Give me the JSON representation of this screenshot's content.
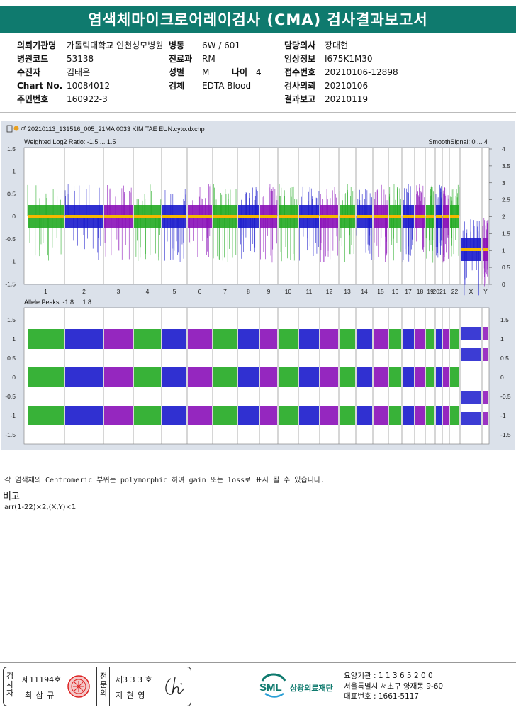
{
  "title": "염색체마이크로어레이검사 (CMA) 검사결과보고서",
  "info_left": [
    {
      "label": "의뢰기관명",
      "value": "가톨릭대학교 인천성모병원"
    },
    {
      "label": "병원코드",
      "value": "53138"
    },
    {
      "label": "수진자",
      "value": "김태은"
    },
    {
      "label": "Chart No.",
      "value": "10084012"
    },
    {
      "label": "주민번호",
      "value": "160922-3"
    }
  ],
  "info_mid": [
    {
      "label": "병동",
      "value": "6W / 601"
    },
    {
      "label": "진료과",
      "value": "RM"
    },
    {
      "label": "성별",
      "value": "M"
    },
    {
      "label": "검체",
      "value": "EDTA Blood"
    }
  ],
  "age": {
    "label": "나이",
    "value": "4"
  },
  "info_right": [
    {
      "label": "담당의사",
      "value": "장대현"
    },
    {
      "label": "임상정보",
      "value": "I675K1M30"
    },
    {
      "label": "접수번호",
      "value": "20210106-12898"
    },
    {
      "label": "검사의뢰",
      "value": "20210106"
    },
    {
      "label": "결과보고",
      "value": "20210119"
    }
  ],
  "plot": {
    "filename": "20210113_131516_005_21MA 0033 KIM TAE EUN.cyto.dxchp",
    "top_title": "Weighted Log2 Ratio: -1.5 ... 1.5",
    "top_right_title": "SmoothSignal: 0 ... 4",
    "bottom_title": "Allele Peaks: -1.8 ... 1.8",
    "top_left_ticks": [
      "1.5",
      "1",
      "0.5",
      "0",
      "-0.5",
      "-1",
      "-1.5"
    ],
    "top_right_ticks": [
      "4",
      "3.5",
      "3",
      "2.5",
      "2",
      "1.5",
      "1",
      "0.5",
      "0"
    ],
    "bottom_left_ticks": [
      "1.5",
      "1",
      "0.5",
      "0",
      "-0.5",
      "-1",
      "-1.5"
    ],
    "bottom_right_ticks": [
      "1.5",
      "1",
      "0.5",
      "0",
      "-0.5",
      "-1",
      "-1.5"
    ],
    "chromosomes": [
      "1",
      "2",
      "3",
      "4",
      "5",
      "6",
      "7",
      "8",
      "9",
      "10",
      "11",
      "12",
      "13",
      "14",
      "15",
      "16",
      "17",
      "18",
      "19",
      "20",
      "21",
      "22",
      "X",
      "Y"
    ],
    "chr_axis_labels": [
      "1",
      "2",
      "3",
      "4",
      "5",
      "6",
      "7",
      "8",
      "9",
      "10",
      "11",
      "12",
      "13",
      "14",
      "15",
      "16",
      "17",
      "18",
      "19",
      "2021",
      "22",
      "X",
      "Y"
    ],
    "colors": {
      "green": "#22aa22",
      "blue": "#1a1acc",
      "purple": "#8a10b8",
      "smooth": "#f5b800"
    }
  },
  "note": "각 염색체의 Centromeric 부위는 polymorphic 하여 gain 또는 loss로 표시 될 수 있습니다.",
  "remark_heading": "비고",
  "remark_text": "arr(1-22)×2,(X,Y)×1",
  "footer": {
    "box1_vertical": "검사자",
    "box1_no": "제11194호",
    "box1_name": "최 삼 규",
    "box2_vertical": "전문의",
    "box2_no": "제3 3 3 호",
    "box2_name": "지 현 영",
    "org_logo": "SML",
    "org_name": "삼광의료재단",
    "addr1": "요양기관 : 1 1 3 6 5 2 0 0",
    "addr2": "서울특별시 서초구 양재동 9-60",
    "addr3": "대표번호 : 1661-5117"
  }
}
